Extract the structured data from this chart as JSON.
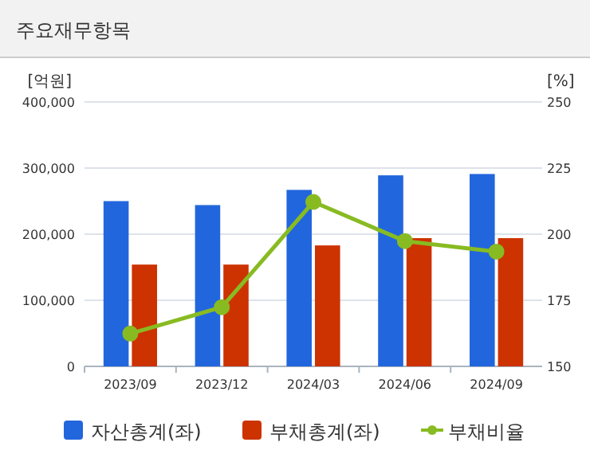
{
  "chart_data": {
    "type": "bar",
    "title": "주요재무항목",
    "ylabel": "[억원]",
    "y2label": "[%]",
    "categories": [
      "2023/09",
      "2023/12",
      "2024/03",
      "2024/06",
      "2024/09"
    ],
    "series": [
      {
        "name": "자산총계(좌)",
        "color": "#2266dd",
        "values": [
          250000,
          244000,
          267000,
          289000,
          291000
        ]
      },
      {
        "name": "부채총계(좌)",
        "color": "#cc3300",
        "values": [
          154000,
          154000,
          183000,
          194000,
          194000
        ]
      },
      {
        "name": "부채비율",
        "type": "line",
        "axis": "y2",
        "color": "#88bb22",
        "values": [
          162.4,
          172.4,
          212.2,
          197.4,
          193.4
        ],
        "marker": "circle"
      }
    ],
    "ylim": [
      0,
      400000
    ],
    "yticks": [
      {
        "value": 0,
        "label": "0"
      },
      {
        "value": 100000,
        "label": "100,000"
      },
      {
        "value": 200000,
        "label": "200,000"
      },
      {
        "value": 300000,
        "label": "300,000"
      },
      {
        "value": 400000,
        "label": "400,000"
      }
    ],
    "y2lim": [
      150,
      250
    ],
    "y2ticks": [
      150,
      175,
      200,
      225,
      250
    ],
    "grid": "y",
    "legend": "bottom"
  }
}
